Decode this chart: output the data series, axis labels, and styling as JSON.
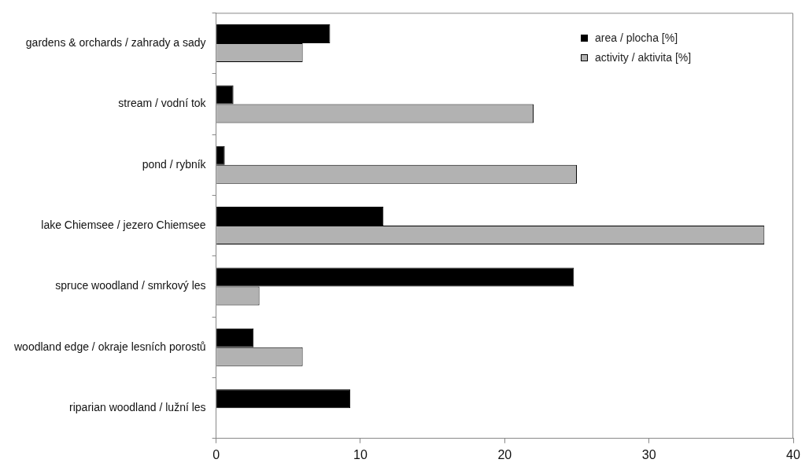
{
  "chart_data": {
    "type": "bar",
    "orientation": "horizontal",
    "categories": [
      "gardens & orchards / zahrady a sady",
      "stream / vodní tok",
      "pond / rybník",
      "lake Chiemsee / jezero Chiemsee",
      "spruce woodland / smrkový les",
      "woodland edge / okraje lesních porostů",
      "riparian woodland / lužní les"
    ],
    "series": [
      {
        "name": "area / plocha [%]",
        "color": "#000000",
        "values": [
          7.9,
          1.2,
          0.6,
          11.6,
          24.8,
          2.6,
          9.3
        ]
      },
      {
        "name": "activity / aktivita [%]",
        "color": "#b2b2b2",
        "values": [
          6.0,
          22.0,
          25.0,
          38.0,
          3.0,
          6.0,
          0
        ]
      }
    ],
    "xlim": [
      0,
      40
    ],
    "xticks": [
      0,
      10,
      20,
      30,
      40
    ],
    "grid": false,
    "legend": "top right"
  }
}
